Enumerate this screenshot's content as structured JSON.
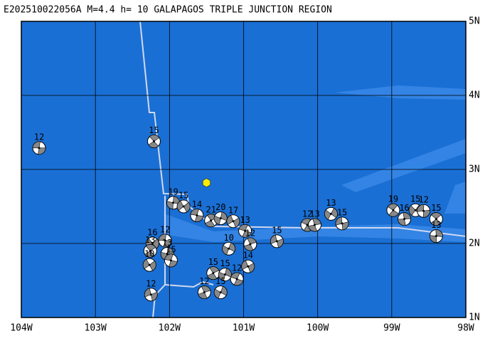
{
  "map": {
    "title": "E202510022056A M=4.4 h= 10 GALAPAGOS TRIPLE JUNCTION REGION",
    "lonlim": [
      -104,
      -98
    ],
    "latlim": [
      1,
      5
    ],
    "lonticks": [
      {
        "value": -104,
        "label": "104W"
      },
      {
        "value": -103,
        "label": "103W"
      },
      {
        "value": -102,
        "label": "102W"
      },
      {
        "value": -101,
        "label": "101W"
      },
      {
        "value": -100,
        "label": "100W"
      },
      {
        "value": -99,
        "label": "99W"
      },
      {
        "value": -98,
        "label": "98W"
      }
    ],
    "latticks": [
      {
        "value": 5,
        "label": "5N"
      },
      {
        "value": 4,
        "label": "4N"
      },
      {
        "value": 3,
        "label": "3N"
      },
      {
        "value": 2,
        "label": "2N"
      },
      {
        "value": 1,
        "label": "1N"
      }
    ],
    "epicenter": {
      "lon": -101.5,
      "lat": 2.82
    },
    "events": [
      {
        "lon": -103.76,
        "lat": 3.29,
        "depth": 12
      },
      {
        "lon": -102.21,
        "lat": 3.38,
        "depth": 15
      },
      {
        "lon": -101.95,
        "lat": 2.55,
        "depth": 19
      },
      {
        "lon": -101.81,
        "lat": 2.5,
        "depth": 15
      },
      {
        "lon": -101.63,
        "lat": 2.38,
        "depth": 14
      },
      {
        "lon": -101.44,
        "lat": 2.31,
        "depth": 21
      },
      {
        "lon": -101.31,
        "lat": 2.34,
        "depth": 20
      },
      {
        "lon": -101.14,
        "lat": 2.3,
        "depth": 17
      },
      {
        "lon": -100.98,
        "lat": 2.17,
        "depth": 13
      },
      {
        "lon": -100.91,
        "lat": 1.99,
        "depth": 12
      },
      {
        "lon": -101.2,
        "lat": 1.93,
        "depth": 10
      },
      {
        "lon": -100.55,
        "lat": 2.03,
        "depth": 15
      },
      {
        "lon": -100.14,
        "lat": 2.25,
        "depth": 12
      },
      {
        "lon": -100.04,
        "lat": 2.25,
        "depth": 13
      },
      {
        "lon": -99.82,
        "lat": 2.4,
        "depth": 13
      },
      {
        "lon": -99.67,
        "lat": 2.27,
        "depth": 15
      },
      {
        "lon": -98.98,
        "lat": 2.45,
        "depth": 19
      },
      {
        "lon": -98.83,
        "lat": 2.33,
        "depth": 16
      },
      {
        "lon": -98.68,
        "lat": 2.45,
        "depth": 15
      },
      {
        "lon": -98.57,
        "lat": 2.44,
        "depth": 12
      },
      {
        "lon": -98.4,
        "lat": 2.33,
        "depth": 15
      },
      {
        "lon": -98.4,
        "lat": 2.1,
        "depth": 13
      },
      {
        "lon": -102.23,
        "lat": 2.0,
        "depth": 16
      },
      {
        "lon": -102.06,
        "lat": 2.04,
        "depth": 12
      },
      {
        "lon": -102.26,
        "lat": 1.9,
        "depth": 13
      },
      {
        "lon": -102.03,
        "lat": 1.86,
        "depth": 13
      },
      {
        "lon": -102.27,
        "lat": 1.71,
        "depth": 10
      },
      {
        "lon": -101.98,
        "lat": 1.77,
        "depth": 15
      },
      {
        "lon": -101.41,
        "lat": 1.6,
        "depth": 15
      },
      {
        "lon": -101.25,
        "lat": 1.58,
        "depth": 15
      },
      {
        "lon": -100.94,
        "lat": 1.69,
        "depth": 14
      },
      {
        "lon": -101.09,
        "lat": 1.52,
        "depth": 12
      },
      {
        "lon": -101.53,
        "lat": 1.34,
        "depth": 12
      },
      {
        "lon": -101.31,
        "lat": 1.34,
        "depth": 15
      },
      {
        "lon": -102.25,
        "lat": 1.31,
        "depth": 12
      }
    ]
  }
}
